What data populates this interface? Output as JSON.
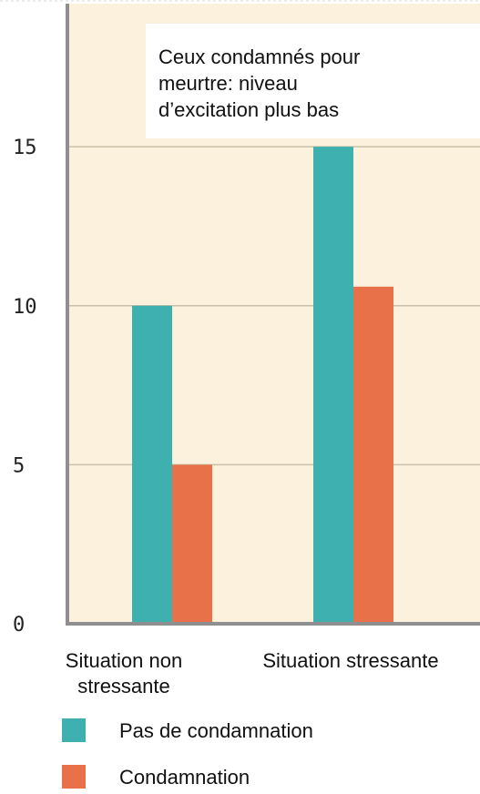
{
  "chart_data": {
    "type": "bar",
    "categories": [
      "Situation non stressante",
      "Situation stressante"
    ],
    "category_lines": [
      [
        "Situation non",
        "stressante"
      ],
      [
        "Situation stressante"
      ]
    ],
    "series": [
      {
        "name": "Pas de condamnation",
        "color": "#3fb0b0",
        "values": [
          10,
          15
        ]
      },
      {
        "name": "Condamnation",
        "color": "#e8714a",
        "values": [
          5,
          10.6
        ]
      }
    ],
    "yticks": [
      0,
      5,
      10,
      15
    ],
    "ylim": [
      0,
      19.5
    ],
    "grid": true,
    "legend_position": "bottom-left",
    "annotation": {
      "lines": [
        "Ceux condamnés pour",
        "meurtre: niveau",
        "d’excitation plus bas"
      ]
    },
    "colors": {
      "plot_background": "#fbf1dd",
      "gridline": "#c9c1a7",
      "axis": "#8f8f8f"
    }
  }
}
